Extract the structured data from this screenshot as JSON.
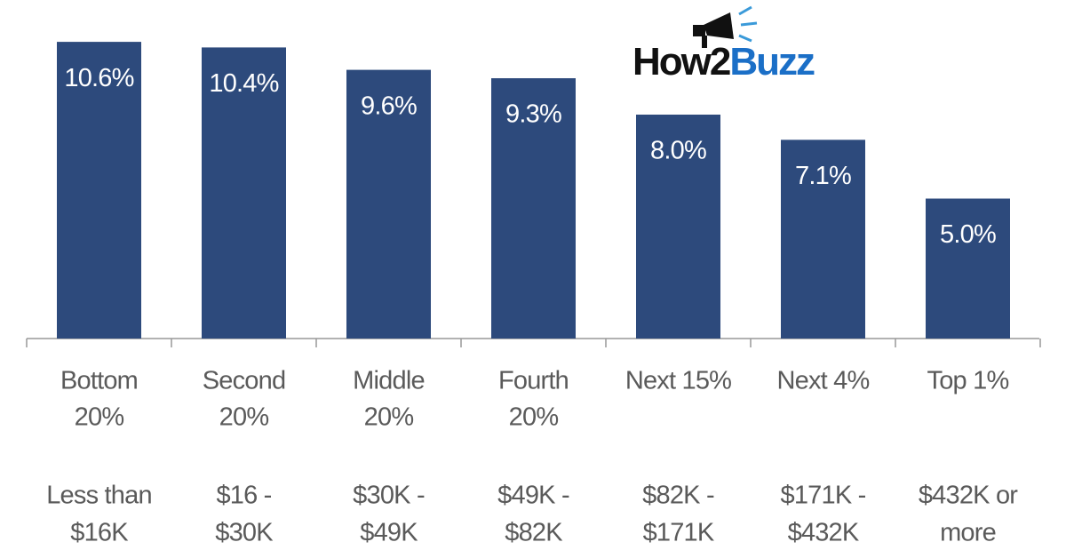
{
  "brand": [
    "How2",
    "Buzz"
  ],
  "chart_data": {
    "type": "bar",
    "categories": [
      [
        "Bottom",
        "20%"
      ],
      [
        "Second",
        "20%"
      ],
      [
        "Middle",
        "20%"
      ],
      [
        "Fourth",
        "20%"
      ],
      [
        "Next 15%"
      ],
      [
        "Next 4%"
      ],
      [
        "Top 1%"
      ]
    ],
    "income_ranges": [
      [
        "Less than",
        "$16K"
      ],
      [
        "$16 -",
        "$30K"
      ],
      [
        "$30K -",
        "$49K"
      ],
      [
        "$49K -",
        "$82K"
      ],
      [
        "$82K -",
        "$171K"
      ],
      [
        "$171K -",
        "$432K"
      ],
      [
        "$432K or",
        "more"
      ]
    ],
    "values": [
      10.6,
      10.4,
      9.6,
      9.3,
      8.0,
      7.1,
      5.0
    ],
    "value_labels": [
      "10.6%",
      "10.4%",
      "9.6%",
      "9.3%",
      "8.0%",
      "7.1%",
      "5.0%"
    ],
    "color": "#2d4a7c"
  }
}
